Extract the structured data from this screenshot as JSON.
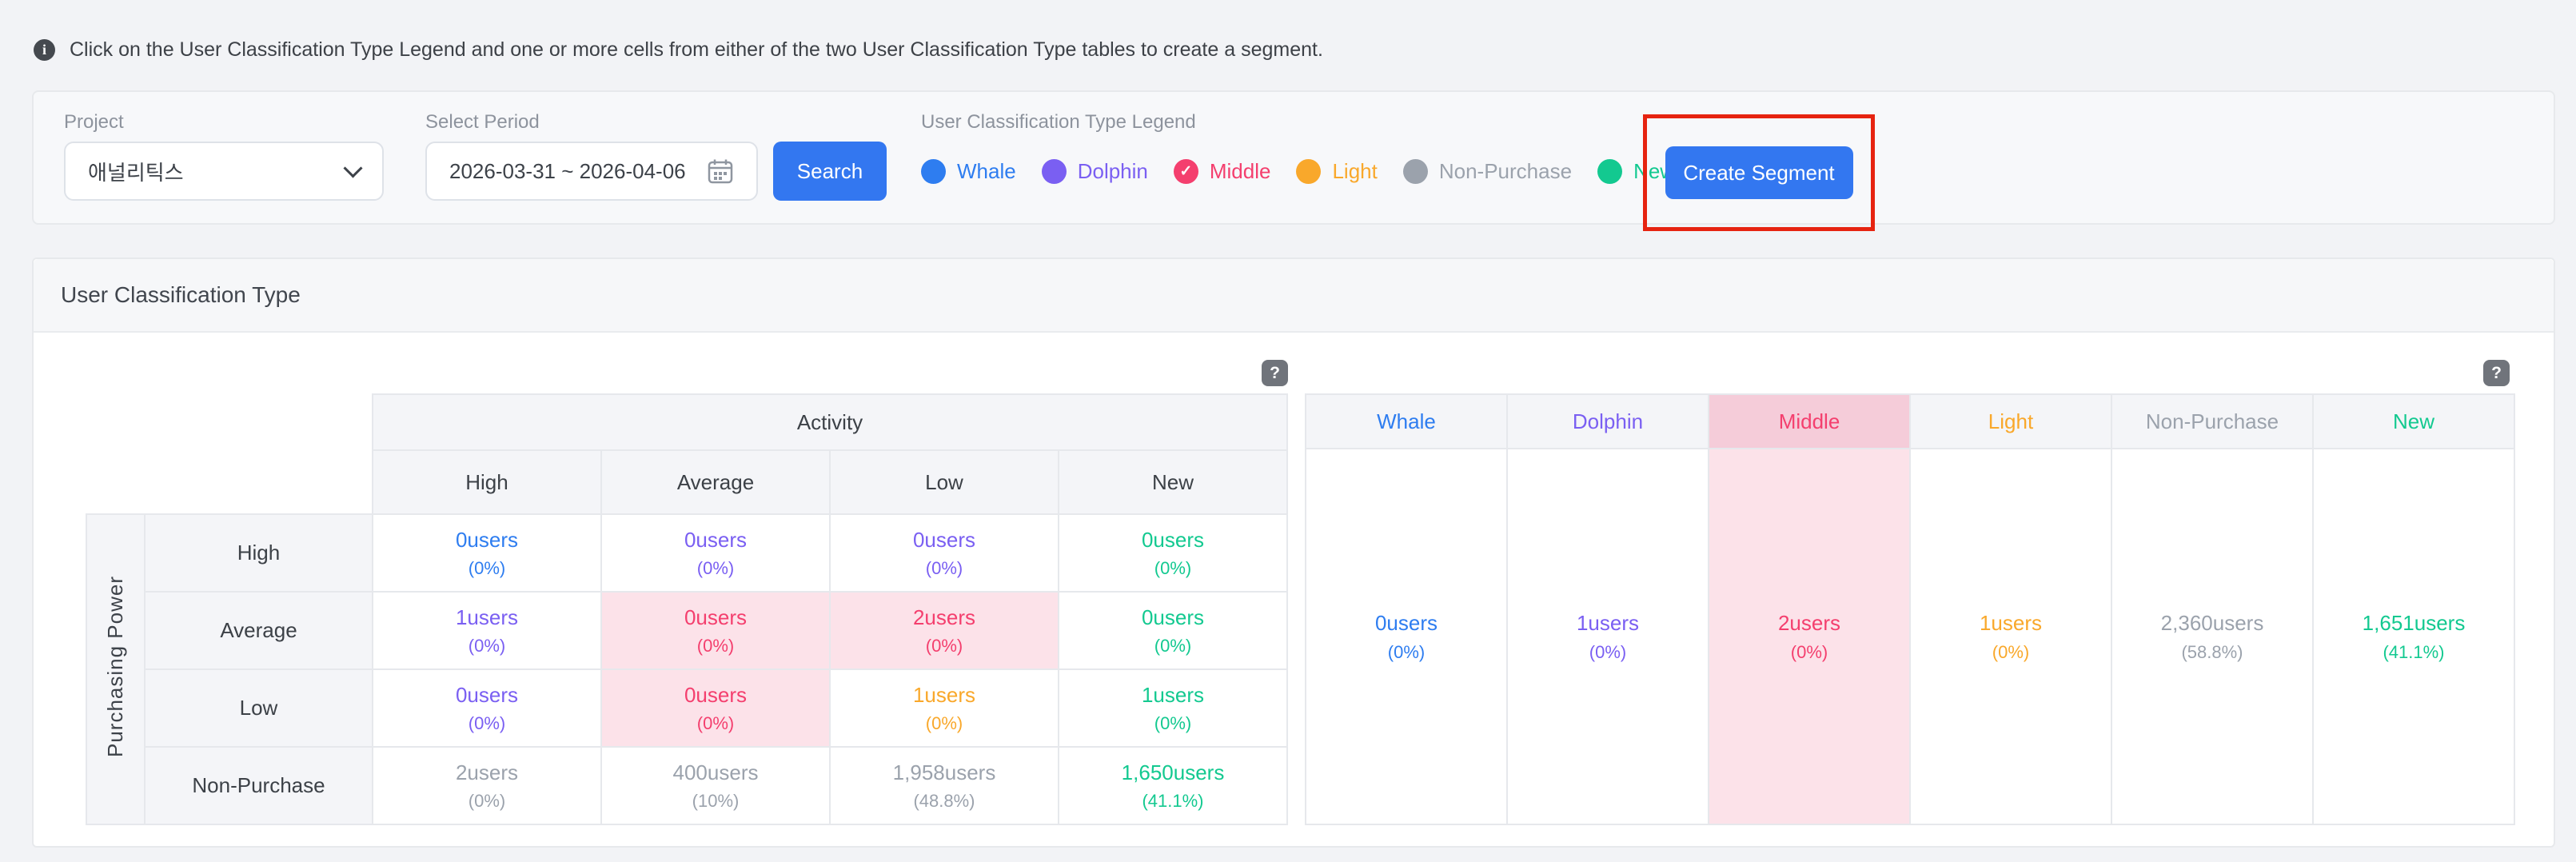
{
  "colors": {
    "whale": "#2e7df0",
    "dolphin": "#7a5ff2",
    "middle": "#f43f6e",
    "light": "#f9a82b",
    "nonpurchase": "#9ba2ac",
    "new": "#13c990",
    "selected_cell_bg": "#fce2e9",
    "selected_header_bg": "#f5ccd9",
    "accent_blue": "#3377f0",
    "annotation_red": "#e62310"
  },
  "info_banner": {
    "text": "Click on the User Classification Type Legend and one or more cells from either of the two User Classification Type tables to create a segment."
  },
  "filter_bar": {
    "project_label": "Project",
    "project_value": "애널리틱스",
    "period_label": "Select Period",
    "period_value": "2026-03-31 ~ 2026-04-06",
    "search_label": "Search",
    "legend_label": "User Classification Type Legend",
    "legend_items": [
      {
        "label": "Whale",
        "type": "whale",
        "selected": false
      },
      {
        "label": "Dolphin",
        "type": "dolphin",
        "selected": false
      },
      {
        "label": "Middle",
        "type": "middle",
        "selected": true
      },
      {
        "label": "Light",
        "type": "light",
        "selected": false
      },
      {
        "label": "Non-Purchase",
        "type": "nonpurchase",
        "selected": false
      },
      {
        "label": "New",
        "type": "new",
        "selected": false
      }
    ],
    "create_segment_label": "Create Segment"
  },
  "panel": {
    "title": "User Classification Type",
    "help_icon": "?"
  },
  "matrix_table": {
    "column_group_label": "Activity",
    "row_group_label": "Purchasing Power",
    "column_headers": [
      "High",
      "Average",
      "Low",
      "New"
    ],
    "row_headers": [
      "High",
      "Average",
      "Low",
      "Non-Purchase"
    ],
    "rows": [
      [
        {
          "users": "0users",
          "pct": "(0%)",
          "type": "whale",
          "selected": false
        },
        {
          "users": "0users",
          "pct": "(0%)",
          "type": "dolphin",
          "selected": false
        },
        {
          "users": "0users",
          "pct": "(0%)",
          "type": "dolphin",
          "selected": false
        },
        {
          "users": "0users",
          "pct": "(0%)",
          "type": "new",
          "selected": false
        }
      ],
      [
        {
          "users": "1users",
          "pct": "(0%)",
          "type": "dolphin",
          "selected": false
        },
        {
          "users": "0users",
          "pct": "(0%)",
          "type": "middle",
          "selected": true
        },
        {
          "users": "2users",
          "pct": "(0%)",
          "type": "middle",
          "selected": true
        },
        {
          "users": "0users",
          "pct": "(0%)",
          "type": "new",
          "selected": false
        }
      ],
      [
        {
          "users": "0users",
          "pct": "(0%)",
          "type": "dolphin",
          "selected": false
        },
        {
          "users": "0users",
          "pct": "(0%)",
          "type": "middle",
          "selected": true
        },
        {
          "users": "1users",
          "pct": "(0%)",
          "type": "light",
          "selected": false
        },
        {
          "users": "1users",
          "pct": "(0%)",
          "type": "new",
          "selected": false
        }
      ],
      [
        {
          "users": "2users",
          "pct": "(0%)",
          "type": "nonpurchase",
          "selected": false
        },
        {
          "users": "400users",
          "pct": "(10%)",
          "type": "nonpurchase",
          "selected": false
        },
        {
          "users": "1,958users",
          "pct": "(48.8%)",
          "type": "nonpurchase",
          "selected": false
        },
        {
          "users": "1,650users",
          "pct": "(41.1%)",
          "type": "new",
          "selected": false
        }
      ]
    ]
  },
  "summary_table": {
    "columns": [
      {
        "header": "Whale",
        "type": "whale",
        "users": "0users",
        "pct": "(0%)",
        "selected": false
      },
      {
        "header": "Dolphin",
        "type": "dolphin",
        "users": "1users",
        "pct": "(0%)",
        "selected": false
      },
      {
        "header": "Middle",
        "type": "middle",
        "users": "2users",
        "pct": "(0%)",
        "selected": true
      },
      {
        "header": "Light",
        "type": "light",
        "users": "1users",
        "pct": "(0%)",
        "selected": false
      },
      {
        "header": "Non-Purchase",
        "type": "nonpurchase",
        "users": "2,360users",
        "pct": "(58.8%)",
        "selected": false
      },
      {
        "header": "New",
        "type": "new",
        "users": "1,651users",
        "pct": "(41.1%)",
        "selected": false
      }
    ]
  }
}
